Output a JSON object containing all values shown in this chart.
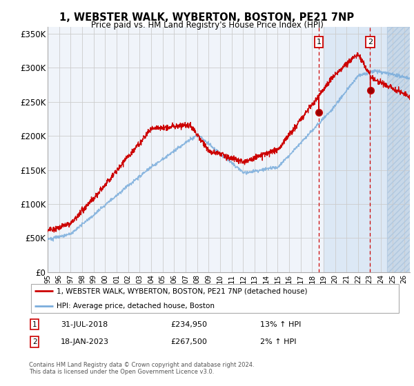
{
  "title": "1, WEBSTER WALK, WYBERTON, BOSTON, PE21 7NP",
  "subtitle": "Price paid vs. HM Land Registry's House Price Index (HPI)",
  "legend_line1": "1, WEBSTER WALK, WYBERTON, BOSTON, PE21 7NP (detached house)",
  "legend_line2": "HPI: Average price, detached house, Boston",
  "transaction1_date": "31-JUL-2018",
  "transaction1_price": 234950,
  "transaction1_label": "13% ↑ HPI",
  "transaction1_year": 2018.58,
  "transaction2_date": "18-JAN-2023",
  "transaction2_price": 267500,
  "transaction2_label": "2% ↑ HPI",
  "transaction2_year": 2023.05,
  "footer1": "Contains HM Land Registry data © Crown copyright and database right 2024.",
  "footer2": "This data is licensed under the Open Government Licence v3.0.",
  "ylim": [
    0,
    360000
  ],
  "yticks": [
    0,
    50000,
    100000,
    150000,
    200000,
    250000,
    300000,
    350000
  ],
  "ytick_labels": [
    "£0",
    "£50K",
    "£100K",
    "£150K",
    "£200K",
    "£250K",
    "£300K",
    "£350K"
  ],
  "xlim_start": 1995.0,
  "xlim_end": 2026.5,
  "xticks": [
    1995,
    1996,
    1997,
    1998,
    1999,
    2000,
    2001,
    2002,
    2003,
    2004,
    2005,
    2006,
    2007,
    2008,
    2009,
    2010,
    2011,
    2012,
    2013,
    2014,
    2015,
    2016,
    2017,
    2018,
    2019,
    2020,
    2021,
    2022,
    2023,
    2024,
    2025,
    2026
  ],
  "red_color": "#cc0000",
  "blue_color": "#7aaddc",
  "shade_color": "#dce8f5",
  "hatch_color": "#c8d8e8",
  "shade_start": 2019.0,
  "hatch_start": 2024.5,
  "grid_color": "#cccccc"
}
